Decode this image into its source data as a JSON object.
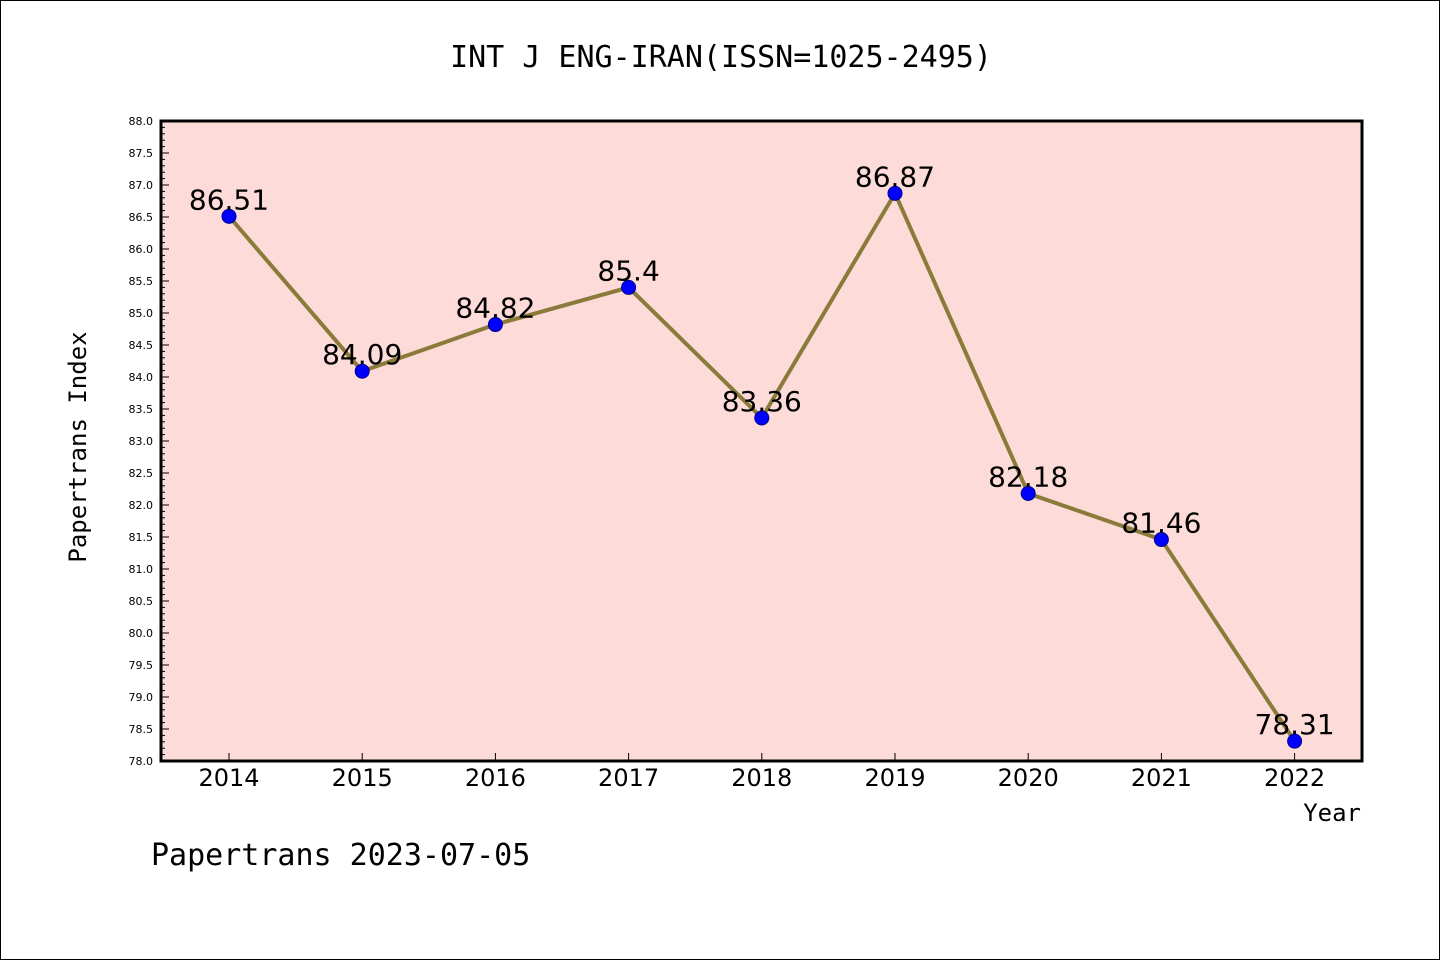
{
  "chart_data": {
    "type": "line",
    "title": "INT J ENG-IRAN(ISSN=1025-2495)",
    "xlabel": "Year",
    "ylabel": "Papertrans Index",
    "categories": [
      "2014",
      "2015",
      "2016",
      "2017",
      "2018",
      "2019",
      "2020",
      "2021",
      "2022"
    ],
    "series": [
      {
        "values": [
          86.51,
          84.09,
          84.82,
          85.4,
          83.36,
          86.87,
          82.18,
          81.46,
          78.31
        ],
        "labels": [
          "86.51",
          "84.09",
          "84.82",
          "85.4",
          "83.36",
          "86.87",
          "82.18",
          "81.46",
          "78.31"
        ]
      }
    ],
    "ylim": [
      78.0,
      88.0
    ],
    "yticks": [
      "78.0",
      "78.5",
      "79.0",
      "79.5",
      "80.0",
      "80.5",
      "81.0",
      "81.5",
      "82.0",
      "82.5",
      "83.0",
      "83.5",
      "84.0",
      "84.5",
      "85.0",
      "85.5",
      "86.0",
      "86.5",
      "87.0",
      "87.5",
      "88.0"
    ],
    "grid": false,
    "colors": {
      "plot_background": "#fddbd9",
      "line": "#8b7b3b",
      "marker": "#0000ff",
      "marker_edge": "#00008b",
      "axes": "#000000"
    }
  },
  "footer": "Papertrans 2023-07-05"
}
